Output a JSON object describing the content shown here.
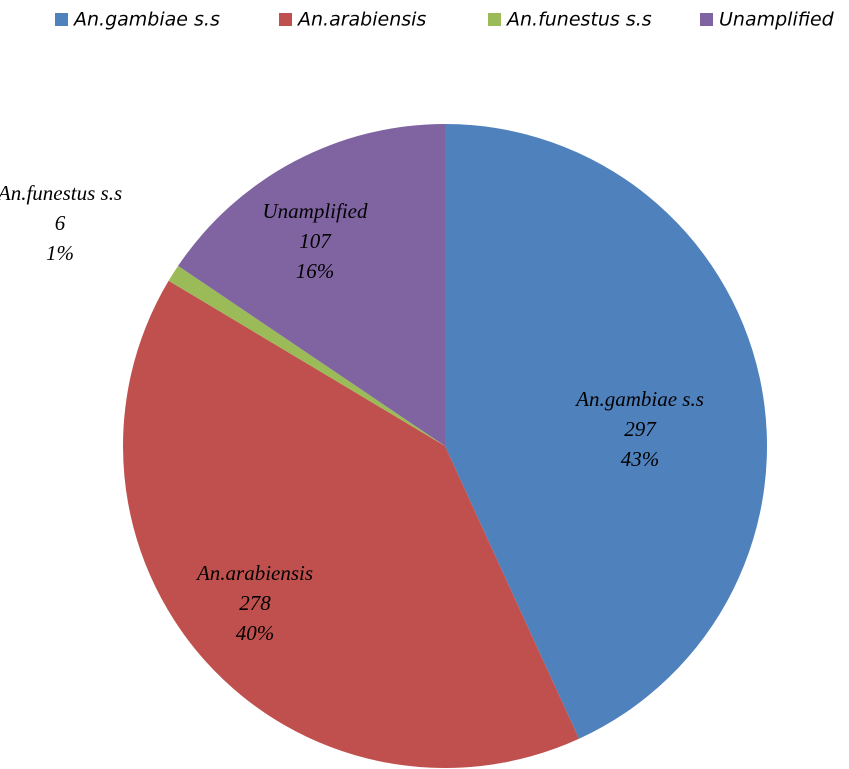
{
  "chart_data": {
    "type": "pie",
    "categories": [
      "An.gambiae s.s",
      "An.arabiensis",
      "An.funestus s.s",
      "Unamplified"
    ],
    "values": [
      297,
      278,
      6,
      107
    ],
    "percent_labels": [
      "43%",
      "40%",
      "1%",
      "16%"
    ],
    "colors": [
      "#4f81bd",
      "#c0504d",
      "#9bbb59",
      "#8064a2"
    ],
    "legend": "top"
  }
}
